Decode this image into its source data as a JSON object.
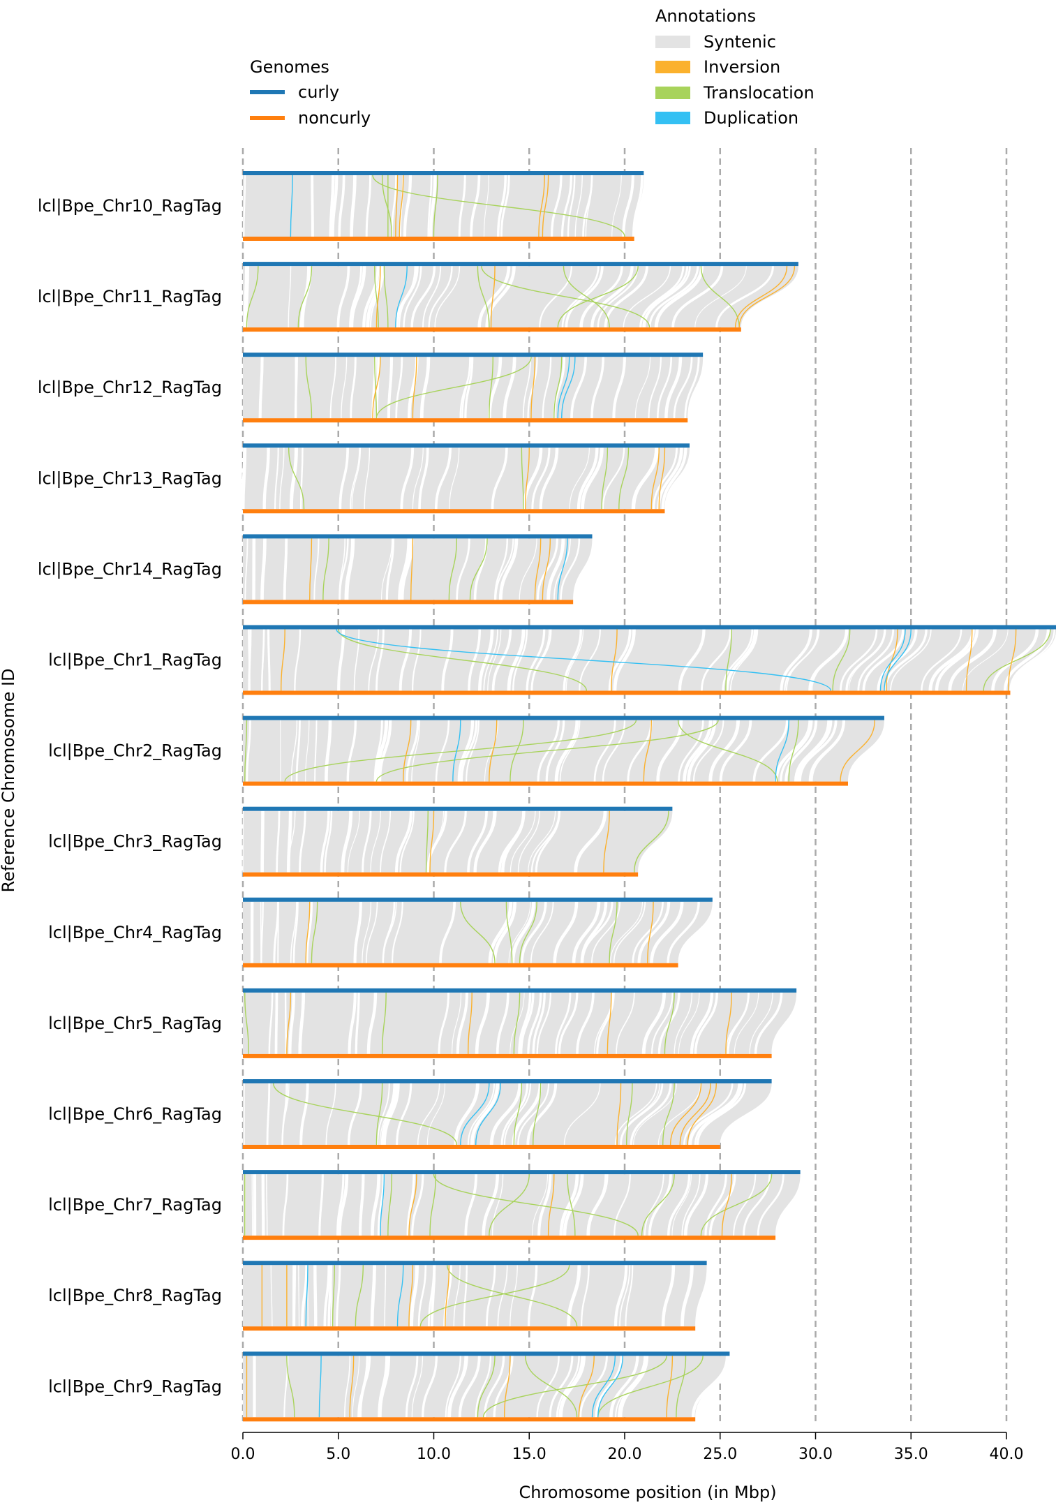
{
  "chart_data": {
    "type": "synteny",
    "xlabel": "Chromosome position (in Mbp)",
    "ylabel": "Reference Chromosome ID",
    "xlim": [
      0,
      42.5
    ],
    "xticks": [
      0,
      5,
      10,
      15,
      20,
      25,
      30,
      35,
      40
    ],
    "xtick_labels": [
      "0.0",
      "5.0",
      "10.0",
      "15.0",
      "20.0",
      "25.0",
      "30.0",
      "35.0",
      "40.0"
    ],
    "grid": "vertical dashed",
    "legend_genomes": {
      "title": "Genomes",
      "entries": [
        {
          "name": "curly",
          "color": "#1f77b4"
        },
        {
          "name": "noncurly",
          "color": "#ff7f0e"
        }
      ]
    },
    "legend_annotations": {
      "title": "Annotations",
      "entries": [
        {
          "name": "Syntenic",
          "color": "#e3e3e3"
        },
        {
          "name": "Inversion",
          "color": "#fbb12d"
        },
        {
          "name": "Translocation",
          "color": "#a8d35b"
        },
        {
          "name": "Duplication",
          "color": "#34c0f3"
        }
      ]
    },
    "chromosomes": [
      {
        "id": "lcl|Bpe_Chr10_RagTag",
        "curly": 21.0,
        "noncurly": 20.5,
        "inversions": [
          [
            8.1,
            8.0
          ],
          [
            8.4,
            8.2
          ],
          [
            15.8,
            15.5
          ],
          [
            16.0,
            15.7
          ]
        ],
        "translocations": [
          [
            7.3,
            7.8
          ],
          [
            7.6,
            7.6
          ],
          [
            6.8,
            20.0
          ],
          [
            10.2,
            10.0
          ]
        ],
        "duplications": [
          [
            2.6,
            2.5
          ]
        ]
      },
      {
        "id": "lcl|Bpe_Chr11_RagTag",
        "curly": 29.1,
        "noncurly": 26.1,
        "inversions": [
          [
            7.2,
            7.0
          ],
          [
            13.2,
            13.0
          ],
          [
            28.5,
            25.8
          ],
          [
            28.9,
            26.0
          ]
        ],
        "translocations": [
          [
            0.8,
            0.2
          ],
          [
            3.6,
            2.9
          ],
          [
            6.9,
            7.1
          ],
          [
            7.4,
            7.6
          ],
          [
            12.5,
            21.3
          ],
          [
            16.8,
            19.2
          ],
          [
            20.7,
            16.5
          ],
          [
            12.3,
            12.9
          ],
          [
            24.0,
            26.0
          ]
        ],
        "duplications": [
          [
            8.6,
            8.0
          ]
        ]
      },
      {
        "id": "lcl|Bpe_Chr12_RagTag",
        "curly": 24.1,
        "noncurly": 23.3,
        "inversions": [
          [
            7.2,
            6.8
          ],
          [
            9.1,
            8.9
          ],
          [
            15.3,
            15.1
          ]
        ],
        "translocations": [
          [
            3.3,
            3.6
          ],
          [
            6.9,
            7.0
          ],
          [
            13.1,
            12.9
          ],
          [
            15.1,
            7.0
          ],
          [
            16.7,
            16.3
          ]
        ],
        "duplications": [
          [
            17.1,
            16.5
          ],
          [
            17.4,
            16.7
          ]
        ]
      },
      {
        "id": "lcl|Bpe_Chr13_RagTag",
        "curly": 23.4,
        "noncurly": 22.1,
        "inversions": [
          [
            15.0,
            14.8
          ],
          [
            21.8,
            21.4
          ],
          [
            22.1,
            21.8
          ]
        ],
        "translocations": [
          [
            2.4,
            3.2
          ],
          [
            14.6,
            14.7
          ],
          [
            19.1,
            18.8
          ],
          [
            20.2,
            19.7
          ]
        ],
        "duplications": []
      },
      {
        "id": "lcl|Bpe_Chr14_RagTag",
        "curly": 18.3,
        "noncurly": 17.3,
        "inversions": [
          [
            3.6,
            3.5
          ],
          [
            8.9,
            8.8
          ],
          [
            15.6,
            15.3
          ],
          [
            16.1,
            15.7
          ]
        ],
        "translocations": [
          [
            4.5,
            4.2
          ],
          [
            11.2,
            10.8
          ],
          [
            12.8,
            11.9
          ]
        ],
        "duplications": [
          [
            17.0,
            16.5
          ]
        ]
      },
      {
        "id": "lcl|Bpe_Chr1_RagTag",
        "curly": 42.6,
        "noncurly": 40.2,
        "inversions": [
          [
            2.2,
            2.0
          ],
          [
            19.6,
            19.3
          ],
          [
            34.3,
            33.7
          ],
          [
            38.2,
            37.9
          ],
          [
            40.5,
            40.1
          ]
        ],
        "translocations": [
          [
            5.0,
            18.0
          ],
          [
            25.6,
            25.3
          ],
          [
            31.8,
            30.9
          ],
          [
            42.3,
            38.8
          ]
        ],
        "duplications": [
          [
            4.9,
            30.8
          ],
          [
            35.0,
            33.6
          ],
          [
            34.7,
            33.4
          ]
        ]
      },
      {
        "id": "lcl|Bpe_Chr2_RagTag",
        "curly": 33.6,
        "noncurly": 31.7,
        "inversions": [
          [
            8.8,
            8.4
          ],
          [
            13.3,
            12.9
          ],
          [
            21.4,
            21.0
          ],
          [
            33.1,
            31.3
          ]
        ],
        "translocations": [
          [
            0.2,
            0.1
          ],
          [
            20.6,
            2.2
          ],
          [
            24.9,
            7.0
          ],
          [
            22.8,
            28.0
          ],
          [
            14.7,
            14.0
          ],
          [
            29.1,
            28.6
          ]
        ],
        "duplications": [
          [
            11.4,
            11.0
          ],
          [
            28.6,
            27.9
          ]
        ]
      },
      {
        "id": "lcl|Bpe_Chr3_RagTag",
        "curly": 22.5,
        "noncurly": 20.7,
        "inversions": [
          [
            10.0,
            9.8
          ],
          [
            19.2,
            18.9
          ]
        ],
        "translocations": [
          [
            9.7,
            9.6
          ],
          [
            22.3,
            20.5
          ]
        ],
        "duplications": []
      },
      {
        "id": "lcl|Bpe_Chr4_RagTag",
        "curly": 24.6,
        "noncurly": 22.8,
        "inversions": [
          [
            3.5,
            3.3
          ],
          [
            21.5,
            21.2
          ]
        ],
        "translocations": [
          [
            3.9,
            3.6
          ],
          [
            11.4,
            13.2
          ],
          [
            13.8,
            14.1
          ],
          [
            15.4,
            14.5
          ],
          [
            19.6,
            19.2
          ]
        ],
        "duplications": []
      },
      {
        "id": "lcl|Bpe_Chr5_RagTag",
        "curly": 29.0,
        "noncurly": 27.7,
        "inversions": [
          [
            2.5,
            2.3
          ],
          [
            12.0,
            11.8
          ],
          [
            19.3,
            19.1
          ],
          [
            25.6,
            25.3
          ]
        ],
        "translocations": [
          [
            0.1,
            0.3
          ],
          [
            7.5,
            7.3
          ],
          [
            14.5,
            14.2
          ],
          [
            22.6,
            22.1
          ]
        ],
        "duplications": []
      },
      {
        "id": "lcl|Bpe_Chr6_RagTag",
        "curly": 27.7,
        "noncurly": 25.0,
        "inversions": [
          [
            19.8,
            19.6
          ],
          [
            24.0,
            22.4
          ],
          [
            24.5,
            22.9
          ],
          [
            24.8,
            23.3
          ]
        ],
        "translocations": [
          [
            1.6,
            11.2
          ],
          [
            7.3,
            7.0
          ],
          [
            14.6,
            14.2
          ],
          [
            15.6,
            15.2
          ],
          [
            20.4,
            20.1
          ],
          [
            22.6,
            22.0
          ]
        ],
        "duplications": [
          [
            12.9,
            11.4
          ],
          [
            13.5,
            12.2
          ]
        ]
      },
      {
        "id": "lcl|Bpe_Chr7_RagTag",
        "curly": 29.2,
        "noncurly": 27.9,
        "inversions": [
          [
            9.1,
            8.7
          ],
          [
            16.3,
            16.0
          ],
          [
            25.6,
            25.1
          ]
        ],
        "translocations": [
          [
            0.1,
            0.1
          ],
          [
            7.8,
            7.6
          ],
          [
            10.1,
            9.8
          ],
          [
            10.0,
            20.7
          ],
          [
            15.0,
            12.9
          ],
          [
            22.6,
            20.9
          ],
          [
            17.0,
            17.4
          ],
          [
            27.7,
            24.0
          ]
        ],
        "duplications": [
          [
            7.4,
            7.2
          ]
        ]
      },
      {
        "id": "lcl|Bpe_Chr8_RagTag",
        "curly": 24.3,
        "noncurly": 23.7,
        "inversions": [
          [
            1.0,
            1.0
          ],
          [
            2.3,
            2.3
          ],
          [
            8.9,
            8.7
          ],
          [
            10.8,
            10.6
          ]
        ],
        "translocations": [
          [
            6.3,
            5.9
          ],
          [
            10.7,
            17.5
          ],
          [
            17.1,
            9.3
          ],
          [
            4.8,
            4.7
          ]
        ],
        "duplications": [
          [
            3.4,
            3.3
          ],
          [
            8.4,
            8.1
          ]
        ]
      },
      {
        "id": "lcl|Bpe_Chr9_RagTag",
        "curly": 25.5,
        "noncurly": 23.7,
        "inversions": [
          [
            0.2,
            0.2
          ],
          [
            5.8,
            5.6
          ],
          [
            14.0,
            13.7
          ],
          [
            18.4,
            17.6
          ],
          [
            22.5,
            22.2
          ]
        ],
        "translocations": [
          [
            2.3,
            2.7
          ],
          [
            13.2,
            12.3
          ],
          [
            14.8,
            17.5
          ],
          [
            22.2,
            12.6
          ],
          [
            24.1,
            18.6
          ],
          [
            23.2,
            22.7
          ]
        ],
        "duplications": [
          [
            4.1,
            4.0
          ],
          [
            19.5,
            18.3
          ],
          [
            19.9,
            18.6
          ]
        ]
      }
    ]
  }
}
